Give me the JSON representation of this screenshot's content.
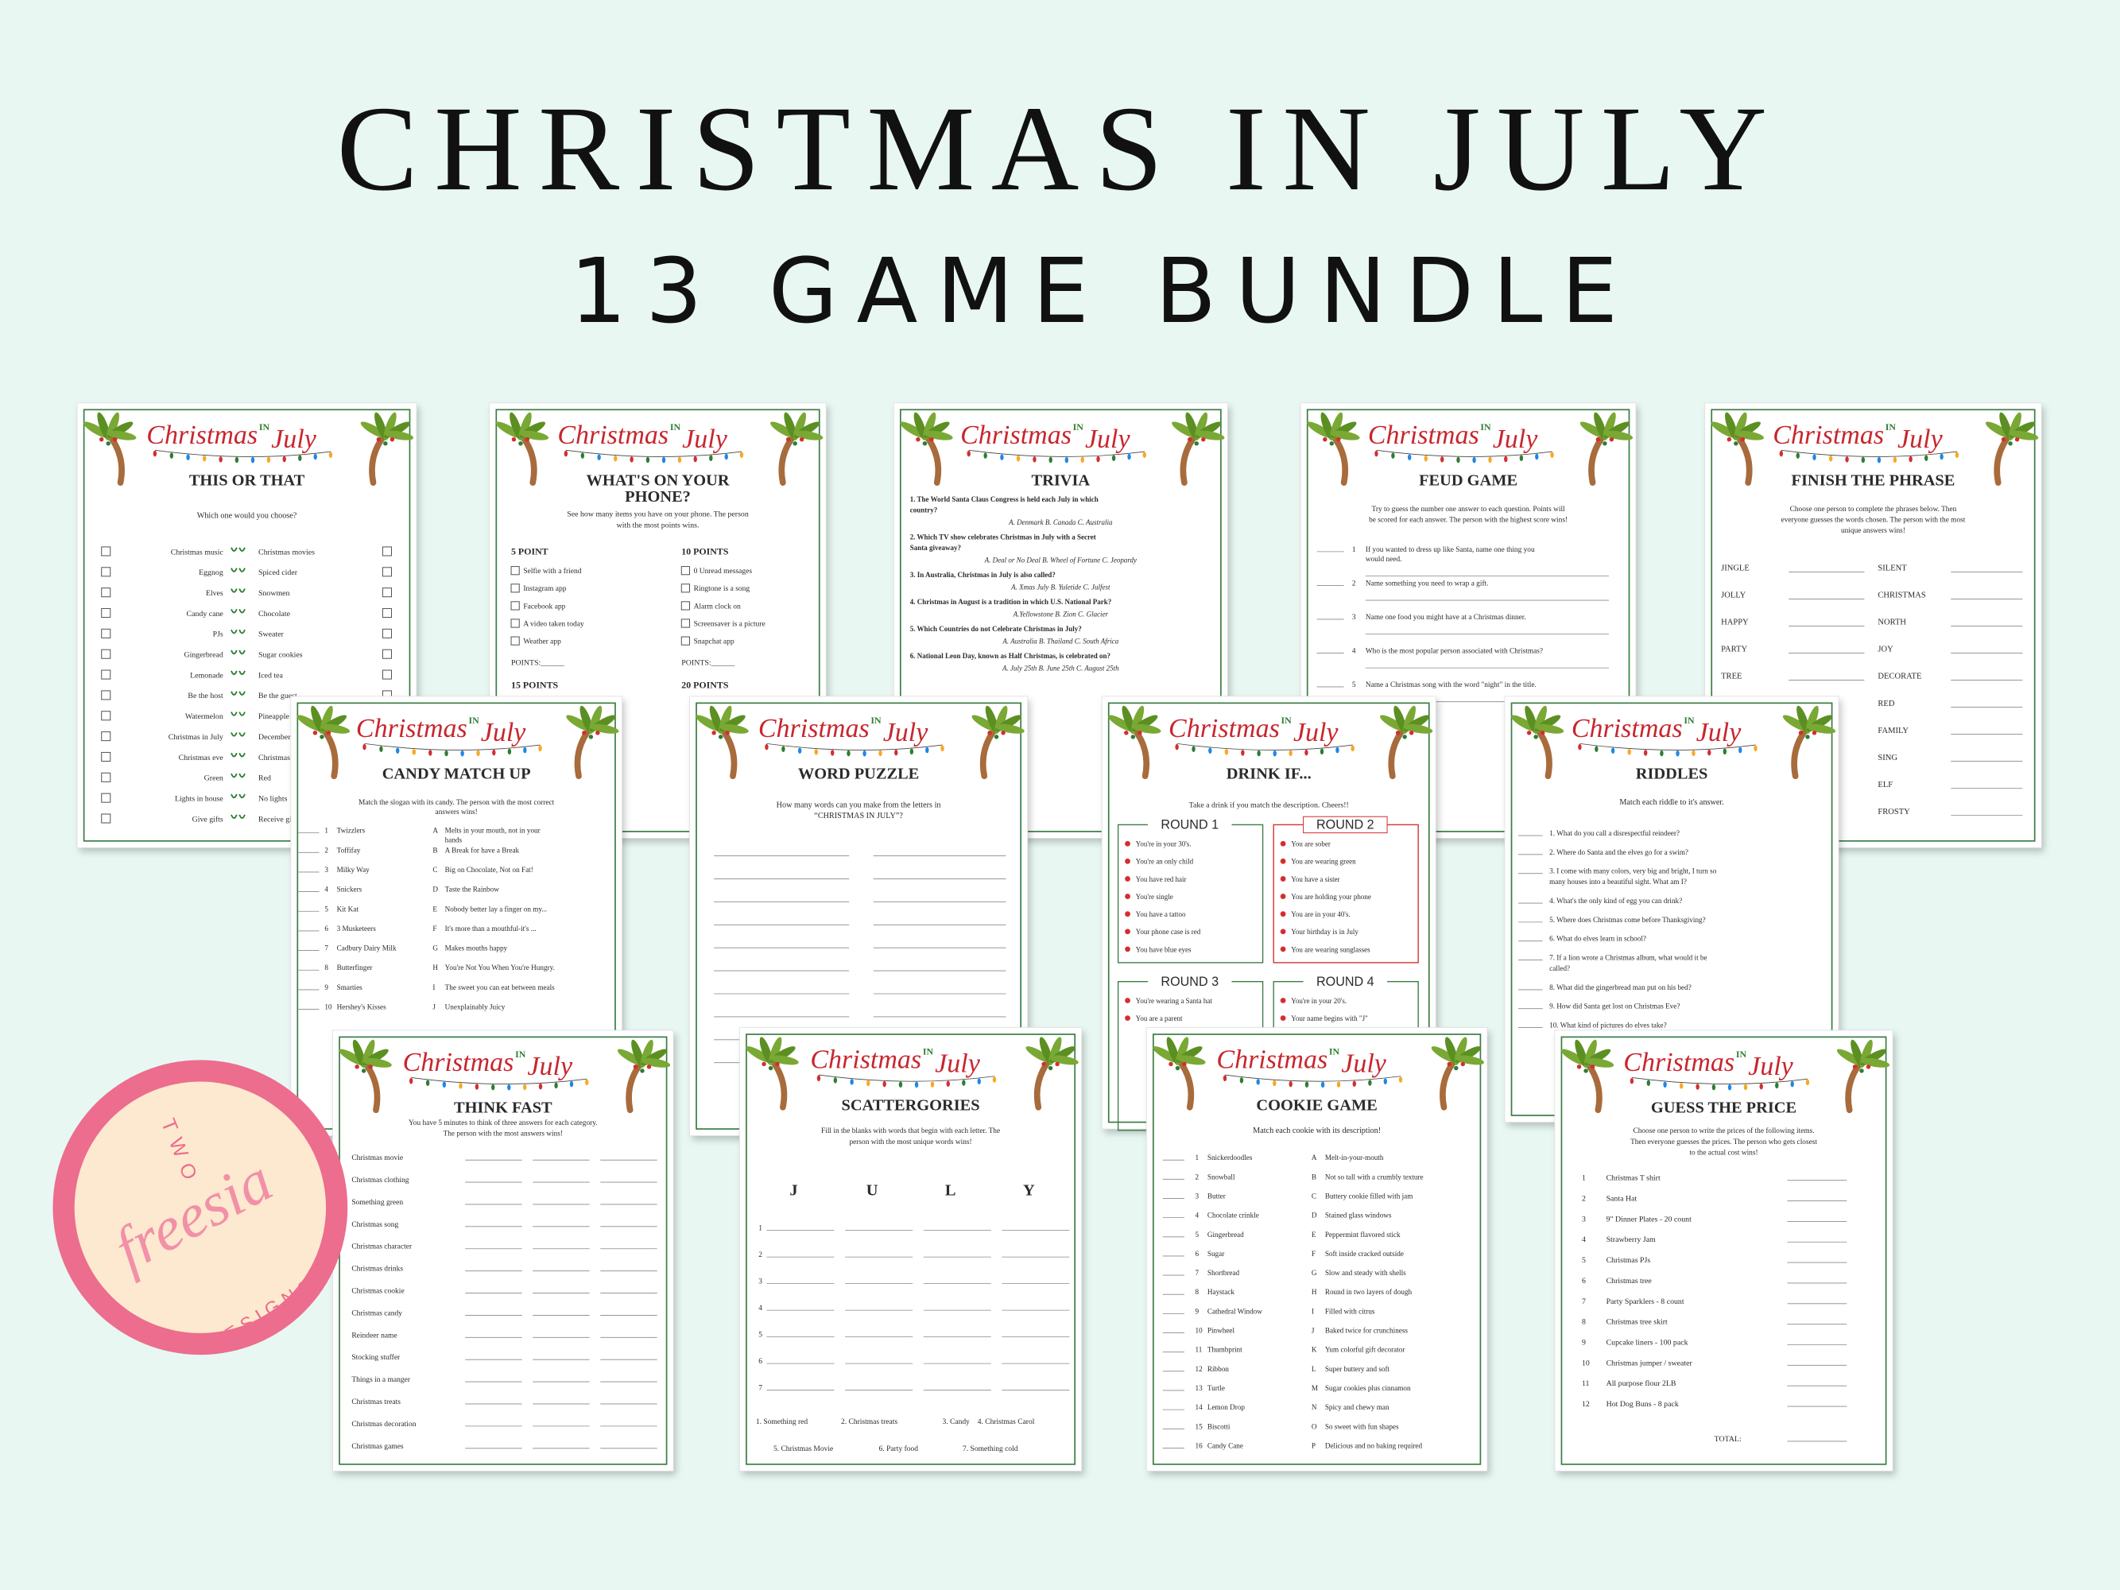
{
  "header": {
    "title": "CHRISTMAS IN JULY",
    "subtitle": "13 GAME BUNDLE"
  },
  "brand": [
    "Christmas",
    "IN",
    "July"
  ],
  "logo": {
    "top": "TWO",
    "script": "freesia",
    "bottom": "DESIGNS"
  },
  "cards": [
    {
      "title": "THIS OR THAT",
      "intro": "Which one would you choose?",
      "pairs": [
        [
          "Christmas music",
          "Christmas movies"
        ],
        [
          "Eggnog",
          "Spiced cider"
        ],
        [
          "Elves",
          "Snowmen"
        ],
        [
          "Candy cane",
          "Chocolate"
        ],
        [
          "PJs",
          "Sweater"
        ],
        [
          "Gingerbread",
          "Sugar cookies"
        ],
        [
          "Lemonade",
          "Iced tea"
        ],
        [
          "Be the host",
          "Be the guest"
        ],
        [
          "Watermelon",
          "Pineapple"
        ],
        [
          "Christmas in July",
          "December"
        ],
        [
          "Christmas eve",
          "Christmas day"
        ],
        [
          "Green",
          "Red"
        ],
        [
          "Lights in house",
          "No lights"
        ],
        [
          "Give gifts",
          "Receive gifts"
        ]
      ]
    },
    {
      "title": [
        "WHAT'S ON YOUR",
        "PHONE?"
      ],
      "intro": [
        "See how many items you have on your phone. The person",
        "with the most points wins."
      ],
      "columns": [
        {
          "heading": "5 POINT",
          "items": [
            "Selfie with a friend",
            "Instagram app",
            "Facebook app",
            "A video taken today",
            "Weather app"
          ],
          "points": "POINTS:______",
          "next": "15 POINTS"
        },
        {
          "heading": "10 POINTS",
          "items": [
            "0 Unread messages",
            "Ringtone is a song",
            "Alarm clock on",
            "Screensaver is a picture",
            "Snapchat app"
          ],
          "points": "POINTS:______",
          "next": "20 POINTS"
        }
      ]
    },
    {
      "title": "TRIVIA",
      "questions": [
        {
          "q": [
            "1. The World Santa Claus Congress is held each July in which",
            "country?"
          ],
          "a": "A. Denmark  B. Canada  C. Australia"
        },
        {
          "q": [
            "2. Which TV show celebrates Christmas in July with a Secret",
            "Santa giveaway?"
          ],
          "a": "A. Deal or No Deal  B. Wheel of Fortune  C. Jeopardy"
        },
        {
          "q": "3. In Australia, Christmas in July is also called?",
          "a": "A. Xmas July  B. Yuletide  C. Julfest"
        },
        {
          "q": "4. Christmas in August is a tradition in which U.S. National Park?",
          "a": "A.Yellowstone  B. Zion  C. Glacier"
        },
        {
          "q": "5. Which Countries do not Celebrate Christmas in July?",
          "a": "A. Australia  B. Thailand  C. South Africa"
        },
        {
          "q": "6. National Leon Day, known as Half Christmas, is celebrated on?",
          "a": "A. July 25th  B. June 25th  C. August 25th"
        }
      ]
    },
    {
      "title": "FEUD GAME",
      "intro": [
        "Try to guess the number one answer to each question. Points will",
        "be scored for each answer. The person with the highest score wins!"
      ],
      "questions": [
        {
          "num": "1",
          "text": [
            "If you wanted to dress up like Santa, name one thing you",
            "would need."
          ]
        },
        {
          "num": "2",
          "text": "Name something you need to wrap a gift."
        },
        {
          "num": "3",
          "text": "Name one food you might have at a Christmas dinner."
        },
        {
          "num": "4",
          "text": "Who is the most popular person associated with Christmas?"
        },
        {
          "num": "5",
          "text": "Name a Christmas song with the word \"night\" in the title."
        }
      ]
    },
    {
      "title": "FINISH THE PHRASE",
      "intro": [
        "Choose one person to complete the phrases below. Then",
        "everyone guesses the words chosen. The person with the most",
        "unique answers wins!"
      ],
      "left": [
        "JINGLE",
        "JOLLY",
        "HAPPY",
        "PARTY",
        "TREE"
      ],
      "right": [
        "SILENT",
        "CHRISTMAS",
        "NORTH",
        "JOY",
        "DECORATE",
        "RED",
        "FAMILY",
        "SING",
        "ELF",
        "FROSTY"
      ]
    },
    {
      "title": "CANDY MATCH UP",
      "intro": [
        "Match the slogan with its candy. The person with the most correct",
        "answers wins!"
      ],
      "rows": [
        [
          "1",
          "Twizzlers",
          "A",
          [
            "Melts in your mouth, not in your",
            "hands"
          ]
        ],
        [
          "2",
          "Toffifay",
          "B",
          "A Break for have a Break"
        ],
        [
          "3",
          "Milky Way",
          "C",
          "Big on Chocolate, Not on Fat!"
        ],
        [
          "4",
          "Snickers",
          "D",
          "Taste the Rainbow"
        ],
        [
          "5",
          "Kit Kat",
          "E",
          "Nobody better lay a finger on my..."
        ],
        [
          "6",
          "3 Musketeers",
          "F",
          "It's more than a mouthful-it's ..."
        ],
        [
          "7",
          "Cadbury Dairy Milk",
          "G",
          "Makes mouths happy"
        ],
        [
          "8",
          "Butterfinger",
          "H",
          "You're Not You When You're Hungry."
        ],
        [
          "9",
          "Smarties",
          "I",
          "The sweet you can eat between meals"
        ],
        [
          "10",
          "Hershey's Kisses",
          "J",
          "Unexplainably Juicy"
        ]
      ]
    },
    {
      "title": "WORD PUZZLE",
      "intro": [
        "How many words can you make from the letters in",
        "“CHRISTMAS IN JULY”?"
      ]
    },
    {
      "title": "DRINK IF...",
      "intro": "Take a drink if you match the description. Cheers!!",
      "rounds": [
        {
          "name": "ROUND 1",
          "items": [
            "You're in your 30's.",
            "You're an only child",
            "You have red hair",
            "You're single",
            "You have a tattoo",
            "Your phone case is red",
            "You have blue eyes"
          ]
        },
        {
          "name": "ROUND 2",
          "items": [
            "You are sober",
            "You are wearing green",
            "You have a sister",
            "You are holding your phone",
            "You are in your 40's.",
            "Your birthday is in July",
            "You are wearing sunglasses"
          ]
        },
        {
          "name": "ROUND 3",
          "items": [
            "You're wearing a Santa hat",
            "You are a parent"
          ]
        },
        {
          "name": "ROUND 4",
          "items": [
            "You're in your 20's.",
            "Your name begins with \"J\""
          ]
        }
      ]
    },
    {
      "title": "RIDDLES",
      "intro": "Match each riddle to it's answer.",
      "questions": [
        "1. What do you call a disrespectful reindeer?",
        "2. Where do Santa and the elves go for a swim?",
        [
          "3. I come with many colors, very big and bright, I turn so",
          "many houses into a beautiful sight. What am I?"
        ],
        "4. What's the only kind of egg you can drink?",
        "5. Where does Christmas come before Thanksgiving?",
        "6. What do elves learn in school?",
        [
          "7. If a lion wrote a Christmas album, what would it be",
          "called?"
        ],
        "8. What did the gingerbread man put on his bed?",
        "9. How did Santa get lost on Christmas Eve?",
        "10. What kind of pictures do elves take?"
      ]
    },
    {
      "title": "THINK FAST",
      "intro": [
        "You have 5 minutes to think of three answers for each category.",
        "The person with the most answers wins!"
      ],
      "categories": [
        "Christmas movie",
        "Christmas clothing",
        "Something green",
        "Christmas song",
        "Christmas character",
        "Christmas drinks",
        "Christmas cookie",
        "Christmas candy",
        "Reindeer name",
        "Stocking stuffer",
        "Things in a manger",
        "Christmas treats",
        "Christmas decoration",
        "Christmas games"
      ]
    },
    {
      "title": "SCATTERGORIES",
      "intro": [
        "Fill in the blanks with words that begin with each letter. The",
        "person with the most unique words wins!"
      ],
      "letters": [
        "J",
        "U",
        "L",
        "Y"
      ],
      "numbers": [
        "1",
        "2",
        "3",
        "4",
        "5",
        "6",
        "7"
      ],
      "categories": [
        [
          "1. Something red",
          "2. Christmas treats",
          "3. Candy",
          "4. Christmas Carol"
        ],
        [
          "5. Christmas Movie",
          "6. Party food",
          "7. Something cold"
        ]
      ]
    },
    {
      "title": "COOKIE GAME",
      "intro": "Match each cookie with its description!",
      "rows": [
        [
          "1",
          "Snickerdoodles",
          "A",
          "Melt-in-your-mouth"
        ],
        [
          "2",
          "Snowball",
          "B",
          "Not so tall with a crumbly texture"
        ],
        [
          "3",
          "Butter",
          "C",
          "Buttery cookie filled with jam"
        ],
        [
          "4",
          "Chocolate crinkle",
          "D",
          "Stained glass windows"
        ],
        [
          "5",
          "Gingerbread",
          "E",
          "Peppermint flavored stick"
        ],
        [
          "6",
          "Sugar",
          "F",
          "Soft inside cracked outside"
        ],
        [
          "7",
          "Shortbread",
          "G",
          "Slow and steady with shells"
        ],
        [
          "8",
          "Haystack",
          "H",
          "Round in two layers of dough"
        ],
        [
          "9",
          "Cathedral Window",
          "I",
          "Filled with citrus"
        ],
        [
          "10",
          "Pinwheel",
          "J",
          "Baked twice for crunchiness"
        ],
        [
          "11",
          "Thumbprint",
          "K",
          "Yum colorful gift decorator"
        ],
        [
          "12",
          "Ribbon",
          "L",
          "Super buttery and soft"
        ],
        [
          "13",
          "Turtle",
          "M",
          "Sugar cookies plus cinnamon"
        ],
        [
          "14",
          "Lemon Drop",
          "N",
          "Spicy and chewy man"
        ],
        [
          "15",
          "Biscotti",
          "O",
          "So sweet with fun shapes"
        ],
        [
          "16",
          "Candy Cane",
          "P",
          "Delicious and no baking required"
        ]
      ]
    },
    {
      "title": "GUESS THE PRICE",
      "intro": [
        "Choose one person to write the prices of the following items.",
        "Then everyone guesses the prices. The person who gets closest",
        "to the actual cost wins!"
      ],
      "items": [
        [
          "1",
          "Christmas T shirt"
        ],
        [
          "2",
          "Santa Hat"
        ],
        [
          "3",
          "9\" Dinner Plates - 20 count"
        ],
        [
          "4",
          "Strawberry Jam"
        ],
        [
          "5",
          "Christmas PJs"
        ],
        [
          "6",
          "Christmas tree"
        ],
        [
          "7",
          "Party Sparklers - 8 count"
        ],
        [
          "8",
          "Christmas tree skirt"
        ],
        [
          "9",
          "Cupcake liners - 100 pack"
        ],
        [
          "10",
          "Christmas jumper / sweater"
        ],
        [
          "11",
          "All purpose flour 2LB"
        ],
        [
          "12",
          "Hot Dog Buns - 8 pack"
        ]
      ],
      "total": "TOTAL:"
    }
  ]
}
